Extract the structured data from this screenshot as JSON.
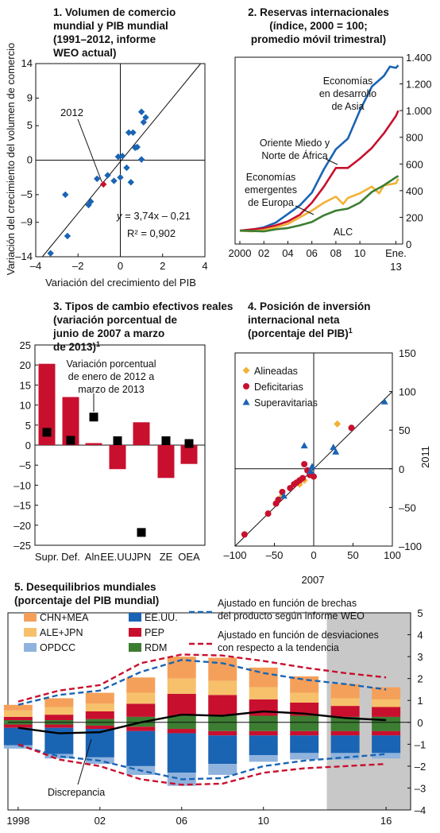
{
  "chart_data": [
    {
      "id": "p1",
      "type": "scatter",
      "title": [
        "1. Volumen de comercio",
        "mundial y PIB mundial",
        "(1991–2012, informe",
        "WEO actual)"
      ],
      "xlabel": "Variación del crecimiento del PIB",
      "ylabel": "Variación del crecimiento del volumen de comercio",
      "xlim": [
        -4,
        4
      ],
      "ylim": [
        -14,
        14
      ],
      "xticks": [
        -4,
        -2,
        0,
        2,
        4
      ],
      "xtick_labels": [
        "–4",
        "–2",
        "0",
        "2",
        "4"
      ],
      "yticks": [
        -14,
        -9,
        -5,
        0,
        5,
        9,
        14
      ],
      "ytick_labels": [
        "–14",
        "–9",
        "–5",
        "0",
        "5",
        "9",
        "14"
      ],
      "points": [
        {
          "x": -3.3,
          "y": -13.5
        },
        {
          "x": -2.5,
          "y": -11.0
        },
        {
          "x": -2.6,
          "y": -5.0
        },
        {
          "x": -1.5,
          "y": -6.5
        },
        {
          "x": -1.4,
          "y": -6.0
        },
        {
          "x": -1.1,
          "y": -2.7
        },
        {
          "x": -0.6,
          "y": -2.2
        },
        {
          "x": -0.3,
          "y": -3.0
        },
        {
          "x": 0.0,
          "y": -2.5
        },
        {
          "x": 0.1,
          "y": 0.6
        },
        {
          "x": -0.1,
          "y": 0.5
        },
        {
          "x": 0.3,
          "y": -1.1
        },
        {
          "x": 0.4,
          "y": 4.0
        },
        {
          "x": 0.6,
          "y": 4.0
        },
        {
          "x": 0.7,
          "y": 1.8
        },
        {
          "x": 0.8,
          "y": 1.9
        },
        {
          "x": 1.0,
          "y": 7.0
        },
        {
          "x": 1.1,
          "y": 5.5
        },
        {
          "x": 1.2,
          "y": 6.2
        },
        {
          "x": 1.0,
          "y": 0.1
        },
        {
          "x": 0.5,
          "y": -3.2
        }
      ],
      "highlight": {
        "label": "2012",
        "x": -0.8,
        "y": -3.5,
        "color": "#c8102e"
      },
      "fit": {
        "slope": 3.74,
        "intercept": -0.21
      },
      "equation": "y = 3,74x – 0,21",
      "r2": "R² = 0,902",
      "marker_color": "#1a64b4"
    },
    {
      "id": "p2",
      "type": "line",
      "title": [
        "2. Reservas internacionales",
        "(índice, 2000 = 100;",
        "promedio móvil trimestral)"
      ],
      "ylim": [
        0,
        1400
      ],
      "yticks": [
        0,
        200,
        400,
        600,
        800,
        1000,
        1200,
        1400
      ],
      "ytick_labels": [
        "0",
        "200",
        "400",
        "600",
        "800",
        "1.000",
        "1.200",
        "1.400"
      ],
      "xlim": [
        2000,
        2013.3
      ],
      "xticks": [
        2000,
        2002,
        2004,
        2006,
        2008,
        2010,
        2013
      ],
      "xtick_labels": [
        "2000",
        "02",
        "04",
        "06",
        "08",
        "10",
        "Ene."
      ],
      "xtick_extra": "13",
      "series": [
        {
          "name": "Economías en desarrollo de Asia",
          "label_lines": [
            "Economías",
            "en desarrollo",
            "de Asia"
          ],
          "color": "#1a64b4",
          "x": [
            2000,
            2001,
            2002,
            2003,
            2004,
            2005,
            2006,
            2007,
            2008,
            2009,
            2010,
            2011,
            2012,
            2012.5,
            2013,
            2013.2
          ],
          "values": [
            100,
            108,
            125,
            160,
            225,
            290,
            385,
            560,
            710,
            790,
            1000,
            1180,
            1260,
            1330,
            1320,
            1340
          ]
        },
        {
          "name": "Oriente Miedo y Norte de África",
          "label_lines": [
            "Oriente Miedo y",
            "Norte de África"
          ],
          "color": "#c8102e",
          "x": [
            2000,
            2001,
            2002,
            2003,
            2004,
            2005,
            2006,
            2007,
            2008,
            2009,
            2010,
            2011,
            2012,
            2013,
            2013.2
          ],
          "values": [
            100,
            110,
            118,
            140,
            170,
            220,
            310,
            430,
            570,
            570,
            640,
            720,
            830,
            960,
            1000
          ]
        },
        {
          "name": "Economías emergentes de Europa",
          "label_lines": [
            "Economías",
            "emergentes",
            "de Europa"
          ],
          "color": "#f2b136",
          "x": [
            2000,
            2001,
            2002,
            2003,
            2004,
            2005,
            2006,
            2007,
            2008,
            2008.6,
            2009,
            2010,
            2011,
            2011.6,
            2012,
            2013,
            2013.2
          ],
          "values": [
            100,
            95,
            105,
            125,
            150,
            200,
            250,
            310,
            355,
            300,
            345,
            380,
            430,
            380,
            440,
            455,
            490
          ]
        },
        {
          "name": "ALC",
          "label_lines": [
            "ALC"
          ],
          "color": "#3c7d32",
          "x": [
            2000,
            2001,
            2002,
            2003,
            2004,
            2005,
            2006,
            2007,
            2008,
            2009,
            2010,
            2011,
            2012,
            2013,
            2013.2
          ],
          "values": [
            100,
            98,
            95,
            110,
            120,
            140,
            165,
            215,
            250,
            265,
            310,
            390,
            440,
            500,
            510
          ]
        }
      ]
    },
    {
      "id": "p3",
      "type": "bar",
      "title": [
        "3. Tipos de cambio efectivos reales",
        "(variación porcentual de",
        "junio de 2007 a marzo",
        "de 2013)"
      ],
      "title_superscript": "1",
      "categories": [
        "Supr.",
        "Def.",
        "Aln.",
        "EE.UU.",
        "JPN",
        "ZE",
        "OEA"
      ],
      "values": [
        20.3,
        12.0,
        0.5,
        -6.0,
        5.7,
        -8.2,
        -4.7
      ],
      "markers": [
        3.2,
        1.2,
        7.0,
        1.1,
        -21.8,
        1.1,
        0.4
      ],
      "marker_label": [
        "Variación porcentual",
        "de enero de 2012 a",
        "marzo de 2013"
      ],
      "ylim": [
        -25,
        25
      ],
      "yticks": [
        -25,
        -20,
        -15,
        -10,
        -5,
        0,
        5,
        10,
        15,
        20,
        25
      ],
      "ytick_labels": [
        "–25",
        "–20",
        "–15",
        "–10",
        "–5",
        "0",
        "5",
        "10",
        "15",
        "20",
        "25"
      ],
      "bar_color": "#c8102e",
      "marker_color": "#000000"
    },
    {
      "id": "p4",
      "type": "scatter",
      "title": [
        "4. Posición de inversión",
        "internacional neta",
        "(porcentaje del PIB)"
      ],
      "title_superscript": "1",
      "xlabel": "2007",
      "ylabel": "2011",
      "xlim": [
        -100,
        100
      ],
      "ylim": [
        -100,
        150
      ],
      "xticks": [
        -100,
        -50,
        0,
        50,
        100
      ],
      "xtick_labels": [
        "–100",
        "–50",
        "0",
        "50",
        "100"
      ],
      "yticks": [
        -100,
        -50,
        0,
        50,
        100,
        150
      ],
      "ytick_labels": [
        "–100",
        "–50",
        "0",
        "50",
        "100",
        "150"
      ],
      "groups": [
        {
          "name": "Alineadas",
          "marker": "diamond",
          "color": "#f2b136",
          "points": [
            [
              -40,
              -35
            ],
            [
              -12,
              -15
            ],
            [
              -18,
              -20
            ],
            [
              30,
              58
            ]
          ]
        },
        {
          "name": "Deficitarias",
          "marker": "circle",
          "color": "#c8102e",
          "points": [
            [
              -88,
              -85
            ],
            [
              -58,
              -58
            ],
            [
              -48,
              -45
            ],
            [
              -45,
              -40
            ],
            [
              -40,
              -30
            ],
            [
              -30,
              -25
            ],
            [
              -25,
              -20
            ],
            [
              -22,
              -18
            ],
            [
              -18,
              -15
            ],
            [
              -14,
              -12
            ],
            [
              -12,
              6
            ],
            [
              -8,
              -2
            ],
            [
              -5,
              -8
            ],
            [
              0,
              -10
            ],
            [
              48,
              53
            ]
          ]
        },
        {
          "name": "Superavitarias",
          "marker": "triangle",
          "color": "#1a64b4",
          "points": [
            [
              -12,
              30
            ],
            [
              -4,
              -3
            ],
            [
              -2,
              3
            ],
            [
              25,
              28
            ],
            [
              28,
              22
            ],
            [
              90,
              87
            ],
            [
              -38,
              -35
            ]
          ]
        }
      ]
    },
    {
      "id": "p5",
      "type": "bar",
      "title": [
        "5. Desequilibrios mundiales",
        "(porcentaje del PIB mundial)"
      ],
      "categories": [
        1998,
        2000,
        2002,
        2004,
        2006,
        2008,
        2010,
        2012,
        2014,
        2016
      ],
      "xtick_labels": [
        "1998",
        "02",
        "06",
        "10",
        "16"
      ],
      "xtick_positions": [
        1998,
        2002,
        2006,
        2010,
        2016
      ],
      "ylim": [
        -4,
        5
      ],
      "yticks": [
        -4,
        -3,
        -2,
        -1,
        0,
        1,
        2,
        3,
        4,
        5
      ],
      "ytick_labels": [
        "–4",
        "–3",
        "–2",
        "–1",
        "0",
        "1",
        "2",
        "3",
        "4",
        "5"
      ],
      "shade_from": 2013.1,
      "series": [
        {
          "name": "CHN+MEA",
          "color": "#f5a05a",
          "values": [
            0.25,
            0.4,
            0.5,
            0.7,
            1.0,
            1.05,
            0.9,
            0.75,
            0.65,
            0.55
          ]
        },
        {
          "name": "ALE+JPN",
          "color": "#f7c06b",
          "values": [
            0.3,
            0.35,
            0.35,
            0.5,
            0.7,
            0.65,
            0.55,
            0.45,
            0.35,
            0.35
          ]
        },
        {
          "name": "OPDCC",
          "color": "#8fb3dc",
          "values": [
            -0.15,
            -0.2,
            -0.3,
            -0.4,
            -0.6,
            -0.5,
            -0.3,
            -0.3,
            -0.3,
            -0.25
          ]
        },
        {
          "name": "EE.UU.",
          "color": "#1a64b4",
          "values": [
            -0.8,
            -1.2,
            -1.3,
            -1.6,
            -1.8,
            -1.3,
            -0.9,
            -0.8,
            -0.8,
            -0.8
          ]
        },
        {
          "name": "PEP",
          "color": "#c8102e",
          "values": [
            0.15,
            0.25,
            0.35,
            0.6,
            1.0,
            0.9,
            0.75,
            0.6,
            0.5,
            0.45
          ]
        },
        {
          "name": "RDM",
          "color": "#3c7d32",
          "values": [
            0.1,
            0.1,
            0.15,
            0.25,
            0.3,
            0.35,
            0.3,
            0.3,
            0.25,
            0.25
          ]
        }
      ],
      "positive_order": [
        "RDM",
        "PEP",
        "ALE+JPN",
        "CHN+MEA"
      ],
      "negative_order": [
        "EE.UU.",
        "OPDCC"
      ],
      "negative_extra": {
        "RDM": [
          -0.1,
          -0.1,
          -0.15,
          -0.2,
          -0.3,
          -0.4,
          -0.4,
          -0.4,
          -0.4,
          -0.4
        ],
        "PEP": [
          -0.15,
          -0.15,
          -0.15,
          -0.2,
          -0.2,
          -0.2,
          -0.2,
          -0.2,
          -0.2,
          -0.2
        ]
      },
      "discrepancy": {
        "name": "Discrepancia",
        "x": [
          1998,
          2000,
          2002,
          2004,
          2006,
          2008,
          2010,
          2012,
          2014,
          2016
        ],
        "values": [
          -0.25,
          -0.5,
          -0.45,
          0.0,
          0.35,
          0.3,
          0.5,
          0.4,
          0.2,
          0.1
        ]
      },
      "band_weo": {
        "name": "Ajustado en función de brechas del producto según informe WEO",
        "label_lines": [
          "Ajustado en función de brechas",
          "del producto según informe WEO"
        ],
        "color": "#1a64b4",
        "upper": [
          0.8,
          1.25,
          1.45,
          2.3,
          2.85,
          2.7,
          2.25,
          1.95,
          1.75,
          1.5
        ],
        "lower": [
          -1.05,
          -1.55,
          -1.75,
          -2.2,
          -2.6,
          -2.55,
          -2.0,
          -1.75,
          -1.6,
          -1.45
        ]
      },
      "band_trend": {
        "name": "Ajustado en función de desviaciones con respecto a la tendencia",
        "label_lines": [
          "Ajustado en función de desviaciones",
          "con respecto a la tendencia"
        ],
        "color": "#c8102e",
        "upper": [
          0.95,
          1.45,
          1.7,
          2.7,
          3.1,
          3.05,
          2.8,
          2.5,
          2.25,
          2.05
        ],
        "lower": [
          -1.0,
          -1.7,
          -2.0,
          -2.6,
          -2.85,
          -2.8,
          -2.3,
          -2.1,
          -2.0,
          -1.9
        ]
      }
    }
  ]
}
